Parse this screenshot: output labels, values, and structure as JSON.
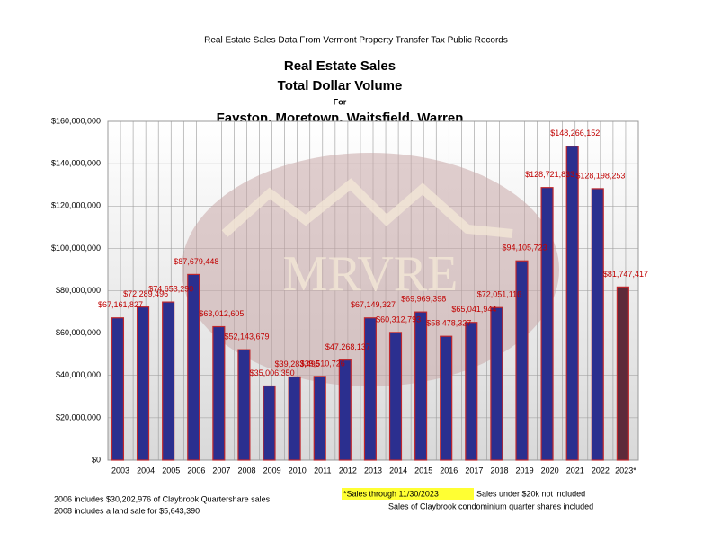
{
  "header": "Real Estate Sales Data From Vermont Property Transfer Tax Public Records",
  "chart_data": {
    "type": "bar",
    "title": [
      "Real Estate Sales",
      "Total Dollar Volume",
      "For",
      "Fayston, Moretown, Waitsfield, Warren"
    ],
    "watermark": "MRVRE",
    "categories": [
      "2003",
      "2004",
      "2005",
      "2006",
      "2007",
      "2008",
      "2009",
      "2010",
      "2011",
      "2012",
      "2013",
      "2014",
      "2015",
      "2016",
      "2017",
      "2018",
      "2019",
      "2020",
      "2021",
      "2022",
      "2023*"
    ],
    "values": [
      67161827,
      72289496,
      74653290,
      87679448,
      63012605,
      52143679,
      35006350,
      39283495,
      39510726,
      47268137,
      67149327,
      60312793,
      69969398,
      58478327,
      65041944,
      72051116,
      94105723,
      128721833,
      148266152,
      128198253,
      81747417
    ],
    "value_labels": [
      "$67,161,827",
      "$72,289,496",
      "$74,653,290",
      "$87,679,448",
      "$63,012,605",
      "$52,143,679",
      "$35,006,350",
      "$39,283,495",
      "$39,510,726",
      "$47,268,137",
      "$67,149,327",
      "$60,312,793",
      "$69,969,398",
      "$58,478,327",
      "$65,041,944",
      "$72,051,116",
      "$94,105,723",
      "$128,721,833",
      "$148,266,152",
      "$128,198,253",
      "$81,747,417"
    ],
    "colors": [
      "#2b2f8f",
      "#2b2f8f",
      "#2b2f8f",
      "#2b2f8f",
      "#2b2f8f",
      "#2b2f8f",
      "#2b2f8f",
      "#2b2f8f",
      "#2b2f8f",
      "#2b2f8f",
      "#2b2f8f",
      "#2b2f8f",
      "#2b2f8f",
      "#2b2f8f",
      "#2b2f8f",
      "#2b2f8f",
      "#2b2f8f",
      "#2b2f8f",
      "#2b2f8f",
      "#2b2f8f",
      "#5e2a3a"
    ],
    "edge_color": "#c0282d",
    "label_color": "#c00000",
    "ylim": [
      0,
      160000000
    ],
    "yticks": [
      {
        "value": 0,
        "label": "$0"
      },
      {
        "value": 20000000,
        "label": "$20,000,000"
      },
      {
        "value": 40000000,
        "label": "$40,000,000"
      },
      {
        "value": 60000000,
        "label": "$60,000,000"
      },
      {
        "value": 80000000,
        "label": "$80,000,000"
      },
      {
        "value": 100000000,
        "label": "$100,000,000"
      },
      {
        "value": 120000000,
        "label": "$120,000,000"
      },
      {
        "value": 140000000,
        "label": "$140,000,000"
      },
      {
        "value": 160000000,
        "label": "$160,000,000"
      }
    ],
    "grid": true
  },
  "notes": [
    "2006 includes $30,202,976 of Claybrook Quartershare sales",
    "2008 includes a land sale for $5,643,390"
  ],
  "highlight_note": "*Sales through 11/30/2023",
  "right_notes": [
    "Sales under $20k not included",
    "Sales of Claybrook condominium quarter shares included"
  ]
}
